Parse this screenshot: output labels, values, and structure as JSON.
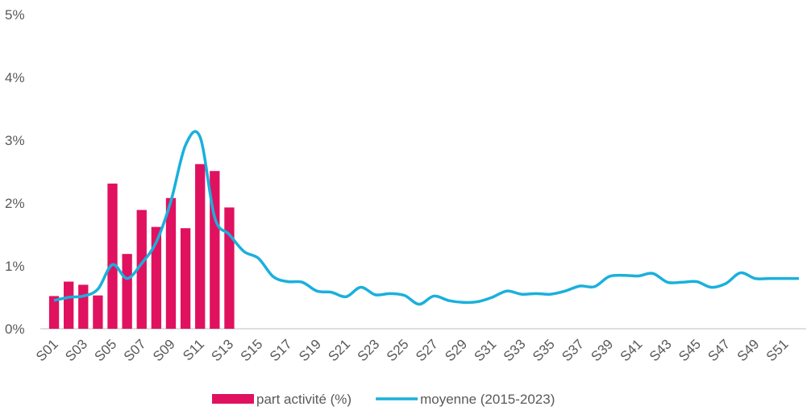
{
  "chart_data": {
    "type": "bar-line",
    "categories": [
      "S01",
      null,
      "S03",
      null,
      "S05",
      null,
      "S07",
      null,
      "S09",
      null,
      "S11",
      null,
      "S13",
      null,
      "S15",
      null,
      "S17",
      null,
      "S19",
      null,
      "S21",
      null,
      "S23",
      null,
      "S25",
      null,
      "S27",
      null,
      "S29",
      null,
      "S31",
      null,
      "S33",
      null,
      "S35",
      null,
      "S37",
      null,
      "S39",
      null,
      "S41",
      null,
      "S43",
      null,
      "S45",
      null,
      "S47",
      null,
      "S49",
      null,
      "S51",
      null
    ],
    "series": [
      {
        "name": "part activité (%)",
        "type": "bar",
        "color": "#e0115f",
        "values": [
          0.52,
          0.75,
          0.7,
          0.53,
          2.31,
          1.19,
          1.89,
          1.62,
          2.08,
          1.6,
          2.62,
          2.51,
          1.93,
          null,
          null,
          null,
          null,
          null,
          null,
          null,
          null,
          null,
          null,
          null,
          null,
          null,
          null,
          null,
          null,
          null,
          null,
          null,
          null,
          null,
          null,
          null,
          null,
          null,
          null,
          null,
          null,
          null,
          null,
          null,
          null,
          null,
          null,
          null,
          null,
          null,
          null,
          null
        ]
      },
      {
        "name": "moyenne (2015-2023)",
        "type": "line",
        "color": "#1ab0dc",
        "values": [
          0.45,
          0.5,
          0.52,
          0.63,
          1.02,
          0.8,
          1.04,
          1.38,
          2.03,
          2.92,
          3.05,
          1.77,
          1.5,
          1.23,
          1.12,
          0.83,
          0.75,
          0.74,
          0.6,
          0.58,
          0.51,
          0.66,
          0.54,
          0.56,
          0.53,
          0.39,
          0.52,
          0.45,
          0.42,
          0.43,
          0.5,
          0.6,
          0.55,
          0.56,
          0.55,
          0.6,
          0.68,
          0.67,
          0.83,
          0.85,
          0.84,
          0.88,
          0.74,
          0.74,
          0.75,
          0.66,
          0.72,
          0.89,
          0.8,
          0.8,
          0.8,
          0.8
        ]
      }
    ],
    "ylim": [
      0,
      5
    ],
    "yticks": [
      {
        "value": 0,
        "label": "0%"
      },
      {
        "value": 1,
        "label": "1%"
      },
      {
        "value": 2,
        "label": "2%"
      },
      {
        "value": 3,
        "label": "3%"
      },
      {
        "value": 4,
        "label": "4%"
      },
      {
        "value": 5,
        "label": "5%"
      }
    ],
    "grid": false,
    "legend": "bottom"
  }
}
